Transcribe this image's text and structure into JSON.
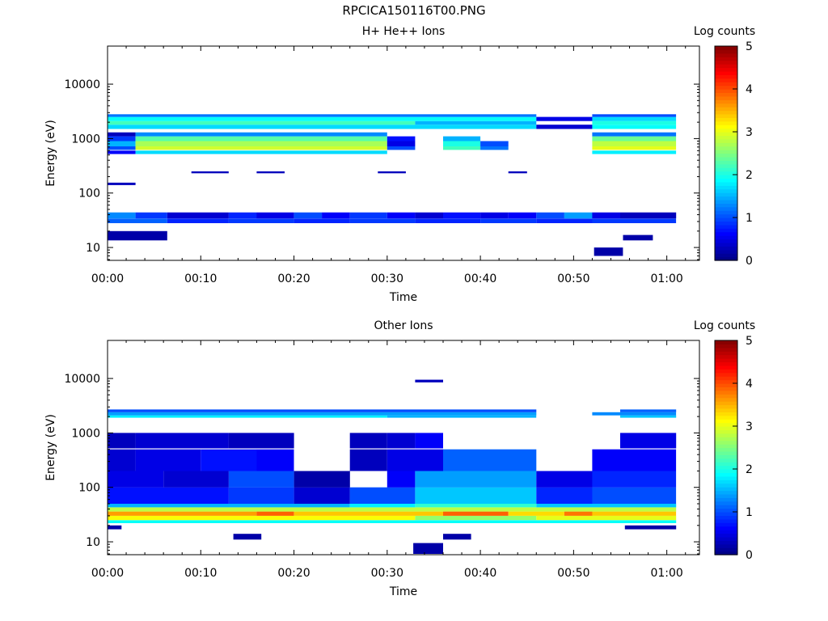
{
  "page_title": "RPCICA150116T00.PNG",
  "chart_data": [
    {
      "type": "heatmap",
      "title": "H+ He++ Ions",
      "xlabel": "Time",
      "ylabel": "Energy (eV)",
      "colorbar_label": "Log counts",
      "colorbar_ticks": [
        "0",
        "1",
        "2",
        "3",
        "4",
        "5"
      ],
      "colorbar_range": [
        0,
        5
      ],
      "x_ticks": [
        "00:00",
        "00:10",
        "00:20",
        "00:30",
        "00:40",
        "00:50",
        "01:00"
      ],
      "x_range_minutes": [
        0,
        63.5
      ],
      "y_ticks": [
        "10",
        "100",
        "1000",
        "10000"
      ],
      "y_range_eV": [
        5.8,
        50000
      ],
      "y_scale": "log",
      "bands": [
        {
          "e_lo": 13.5,
          "e_hi": 20,
          "segments": [
            [
              0,
              6.4,
              0.2
            ]
          ]
        },
        {
          "e_lo": 7,
          "e_hi": 10,
          "segments": [
            [
              52.2,
              55.3,
              0.2
            ]
          ]
        },
        {
          "e_lo": 13.5,
          "e_hi": 17,
          "segments": [
            [
              55.3,
              58.5,
              0.2
            ]
          ]
        },
        {
          "e_lo": 28,
          "e_hi": 34,
          "segments": [
            [
              0,
              6.4,
              1.1
            ],
            [
              6.4,
              13,
              0.8
            ],
            [
              13,
              20,
              0.9
            ],
            [
              20,
              26,
              0.8
            ],
            [
              26,
              33,
              0.9
            ],
            [
              33,
              40,
              0.8
            ],
            [
              40,
              46,
              0.9
            ],
            [
              46,
              52,
              0.8
            ],
            [
              52,
              61,
              0.9
            ]
          ]
        },
        {
          "e_lo": 34,
          "e_hi": 44,
          "segments": [
            [
              0,
              3,
              1.3
            ],
            [
              3,
              6.4,
              0.9
            ],
            [
              6.4,
              13,
              0.4
            ],
            [
              13,
              16,
              0.8
            ],
            [
              16,
              20,
              0.5
            ],
            [
              20,
              23,
              1.0
            ],
            [
              23,
              26,
              0.6
            ],
            [
              26,
              30,
              0.9
            ],
            [
              30,
              33,
              0.6
            ],
            [
              33,
              36,
              0.4
            ],
            [
              36,
              40,
              0.7
            ],
            [
              40,
              43,
              0.5
            ],
            [
              43,
              46,
              0.6
            ],
            [
              46,
              49,
              1.0
            ],
            [
              49,
              52,
              1.4
            ],
            [
              52,
              55,
              0.5
            ],
            [
              55,
              61,
              0.3
            ]
          ]
        },
        {
          "e_lo": 140,
          "e_hi": 155,
          "segments": [
            [
              0,
              3,
              0.3
            ]
          ]
        },
        {
          "e_lo": 230,
          "e_hi": 250,
          "segments": [
            [
              9,
              13,
              0.3
            ],
            [
              16,
              19,
              0.3
            ],
            [
              29,
              32,
              0.3
            ],
            [
              43,
              45,
              0.3
            ]
          ]
        },
        {
          "e_lo": 1500,
          "e_hi": 1800,
          "segments": [
            [
              0,
              46,
              1.7
            ],
            [
              46,
              52,
              0.4
            ],
            [
              52,
              61,
              1.9
            ]
          ]
        },
        {
          "e_lo": 1800,
          "e_hi": 2100,
          "segments": [
            [
              0,
              33,
              2.2
            ],
            [
              33,
              46,
              1.5
            ],
            [
              52,
              61,
              2.0
            ]
          ]
        },
        {
          "e_lo": 2100,
          "e_hi": 2500,
          "segments": [
            [
              0,
              46,
              1.9
            ],
            [
              46,
              52,
              0.5
            ],
            [
              52,
              61,
              1.7
            ]
          ]
        },
        {
          "e_lo": 2500,
          "e_hi": 2800,
          "segments": [
            [
              0,
              46,
              1.2
            ],
            [
              52,
              61,
              1.0
            ]
          ]
        },
        {
          "e_lo": 620,
          "e_hi": 720,
          "segments": [
            [
              0,
              3,
              1.0
            ],
            [
              3,
              30,
              2.9
            ],
            [
              30,
              33,
              1.0
            ],
            [
              36,
              40,
              2.2
            ],
            [
              40,
              43,
              1.2
            ],
            [
              52,
              61,
              3.0
            ]
          ]
        },
        {
          "e_lo": 720,
          "e_hi": 900,
          "segments": [
            [
              0,
              3,
              1.5
            ],
            [
              3,
              30,
              2.7
            ],
            [
              30,
              33,
              0.5
            ],
            [
              36,
              40,
              2.0
            ],
            [
              40,
              43,
              1.0
            ],
            [
              52,
              61,
              2.8
            ]
          ]
        },
        {
          "e_lo": 900,
          "e_hi": 1100,
          "segments": [
            [
              0,
              3,
              0.9
            ],
            [
              3,
              30,
              2.3
            ],
            [
              30,
              33,
              0.7
            ],
            [
              36,
              40,
              1.5
            ],
            [
              52,
              61,
              2.4
            ]
          ]
        },
        {
          "e_lo": 520,
          "e_hi": 600,
          "segments": [
            [
              0,
              3,
              0.6
            ],
            [
              3,
              30,
              1.7
            ],
            [
              52,
              61,
              1.8
            ]
          ]
        },
        {
          "e_lo": 1100,
          "e_hi": 1300,
          "segments": [
            [
              0,
              3,
              0.3
            ],
            [
              3,
              30,
              1.3
            ],
            [
              52,
              61,
              1.2
            ]
          ]
        }
      ]
    },
    {
      "type": "heatmap",
      "title": "Other Ions",
      "xlabel": "Time",
      "ylabel": "Energy (eV)",
      "colorbar_label": "Log counts",
      "colorbar_ticks": [
        "0",
        "1",
        "2",
        "3",
        "4",
        "5"
      ],
      "colorbar_range": [
        0,
        5
      ],
      "x_ticks": [
        "00:00",
        "00:10",
        "00:20",
        "00:30",
        "00:40",
        "00:50",
        "01:00"
      ],
      "x_range_minutes": [
        0,
        63.5
      ],
      "y_ticks": [
        "10",
        "100",
        "1000",
        "10000"
      ],
      "y_range_eV": [
        5.8,
        50000
      ],
      "y_scale": "log",
      "bands": [
        {
          "e_lo": 6,
          "e_hi": 9.5,
          "segments": [
            [
              32.8,
              36,
              0.2
            ]
          ]
        },
        {
          "e_lo": 11,
          "e_hi": 14,
          "segments": [
            [
              13.5,
              16.5,
              0.2
            ],
            [
              36,
              39,
              0.2
            ]
          ]
        },
        {
          "e_lo": 17,
          "e_hi": 20,
          "segments": [
            [
              0,
              1.5,
              0.2
            ],
            [
              55.5,
              61,
              0.2
            ]
          ]
        },
        {
          "e_lo": 22,
          "e_hi": 25,
          "segments": [
            [
              0,
              61,
              1.9
            ]
          ]
        },
        {
          "e_lo": 25,
          "e_hi": 30,
          "segments": [
            [
              0,
              33,
              3.1
            ],
            [
              33,
              46,
              2.6
            ],
            [
              46,
              61,
              3.0
            ]
          ]
        },
        {
          "e_lo": 30,
          "e_hi": 36,
          "segments": [
            [
              0,
              16,
              3.6
            ],
            [
              16,
              20,
              3.9
            ],
            [
              20,
              36,
              3.4
            ],
            [
              36,
              43,
              3.9
            ],
            [
              43,
              49,
              3.3
            ],
            [
              49,
              52,
              3.8
            ],
            [
              52,
              61,
              3.4
            ]
          ]
        },
        {
          "e_lo": 36,
          "e_hi": 43,
          "segments": [
            [
              0,
              61,
              2.8
            ]
          ]
        },
        {
          "e_lo": 43,
          "e_hi": 50,
          "segments": [
            [
              0,
              26,
              1.5
            ],
            [
              26,
              33,
              1.8
            ],
            [
              33,
              46,
              2.1
            ],
            [
              46,
              61,
              1.6
            ]
          ]
        },
        {
          "e_lo": 50,
          "e_hi": 100,
          "segments": [
            [
              0,
              13,
              0.7
            ],
            [
              13,
              20,
              0.9
            ],
            [
              20,
              26,
              0.4
            ],
            [
              26,
              33,
              1.0
            ],
            [
              33,
              46,
              1.6
            ],
            [
              46,
              52,
              0.8
            ],
            [
              52,
              61,
              1.0
            ]
          ]
        },
        {
          "e_lo": 100,
          "e_hi": 200,
          "segments": [
            [
              0,
              6,
              0.5
            ],
            [
              6,
              13,
              0.4
            ],
            [
              13,
              20,
              1.0
            ],
            [
              20,
              26,
              0.2
            ],
            [
              30,
              33,
              0.6
            ],
            [
              33,
              46,
              1.4
            ],
            [
              46,
              52,
              0.5
            ],
            [
              52,
              61,
              0.8
            ]
          ]
        },
        {
          "e_lo": 200,
          "e_hi": 500,
          "segments": [
            [
              0,
              3,
              0.4
            ],
            [
              3,
              10,
              0.5
            ],
            [
              10,
              16,
              0.7
            ],
            [
              16,
              20,
              0.6
            ],
            [
              26,
              30,
              0.3
            ],
            [
              30,
              36,
              0.5
            ],
            [
              36,
              46,
              1.1
            ],
            [
              52,
              61,
              0.6
            ]
          ]
        },
        {
          "e_lo": 520,
          "e_hi": 1000,
          "segments": [
            [
              0,
              3,
              0.3
            ],
            [
              3,
              13,
              0.4
            ],
            [
              13,
              20,
              0.3
            ],
            [
              26,
              30,
              0.3
            ],
            [
              30,
              33,
              0.4
            ],
            [
              33,
              36,
              0.6
            ],
            [
              55,
              61,
              0.5
            ]
          ]
        },
        {
          "e_lo": 1900,
          "e_hi": 2100,
          "segments": [
            [
              0,
              30,
              1.8
            ],
            [
              30,
              46,
              1.5
            ],
            [
              55,
              61,
              1.6
            ]
          ]
        },
        {
          "e_lo": 2100,
          "e_hi": 2400,
          "segments": [
            [
              0,
              46,
              1.4
            ],
            [
              52,
              61,
              1.3
            ]
          ]
        },
        {
          "e_lo": 2400,
          "e_hi": 2700,
          "segments": [
            [
              0,
              46,
              1.0
            ],
            [
              55,
              61,
              1.1
            ]
          ]
        },
        {
          "e_lo": 8500,
          "e_hi": 9500,
          "segments": [
            [
              33,
              36,
              0.3
            ]
          ]
        }
      ]
    }
  ]
}
